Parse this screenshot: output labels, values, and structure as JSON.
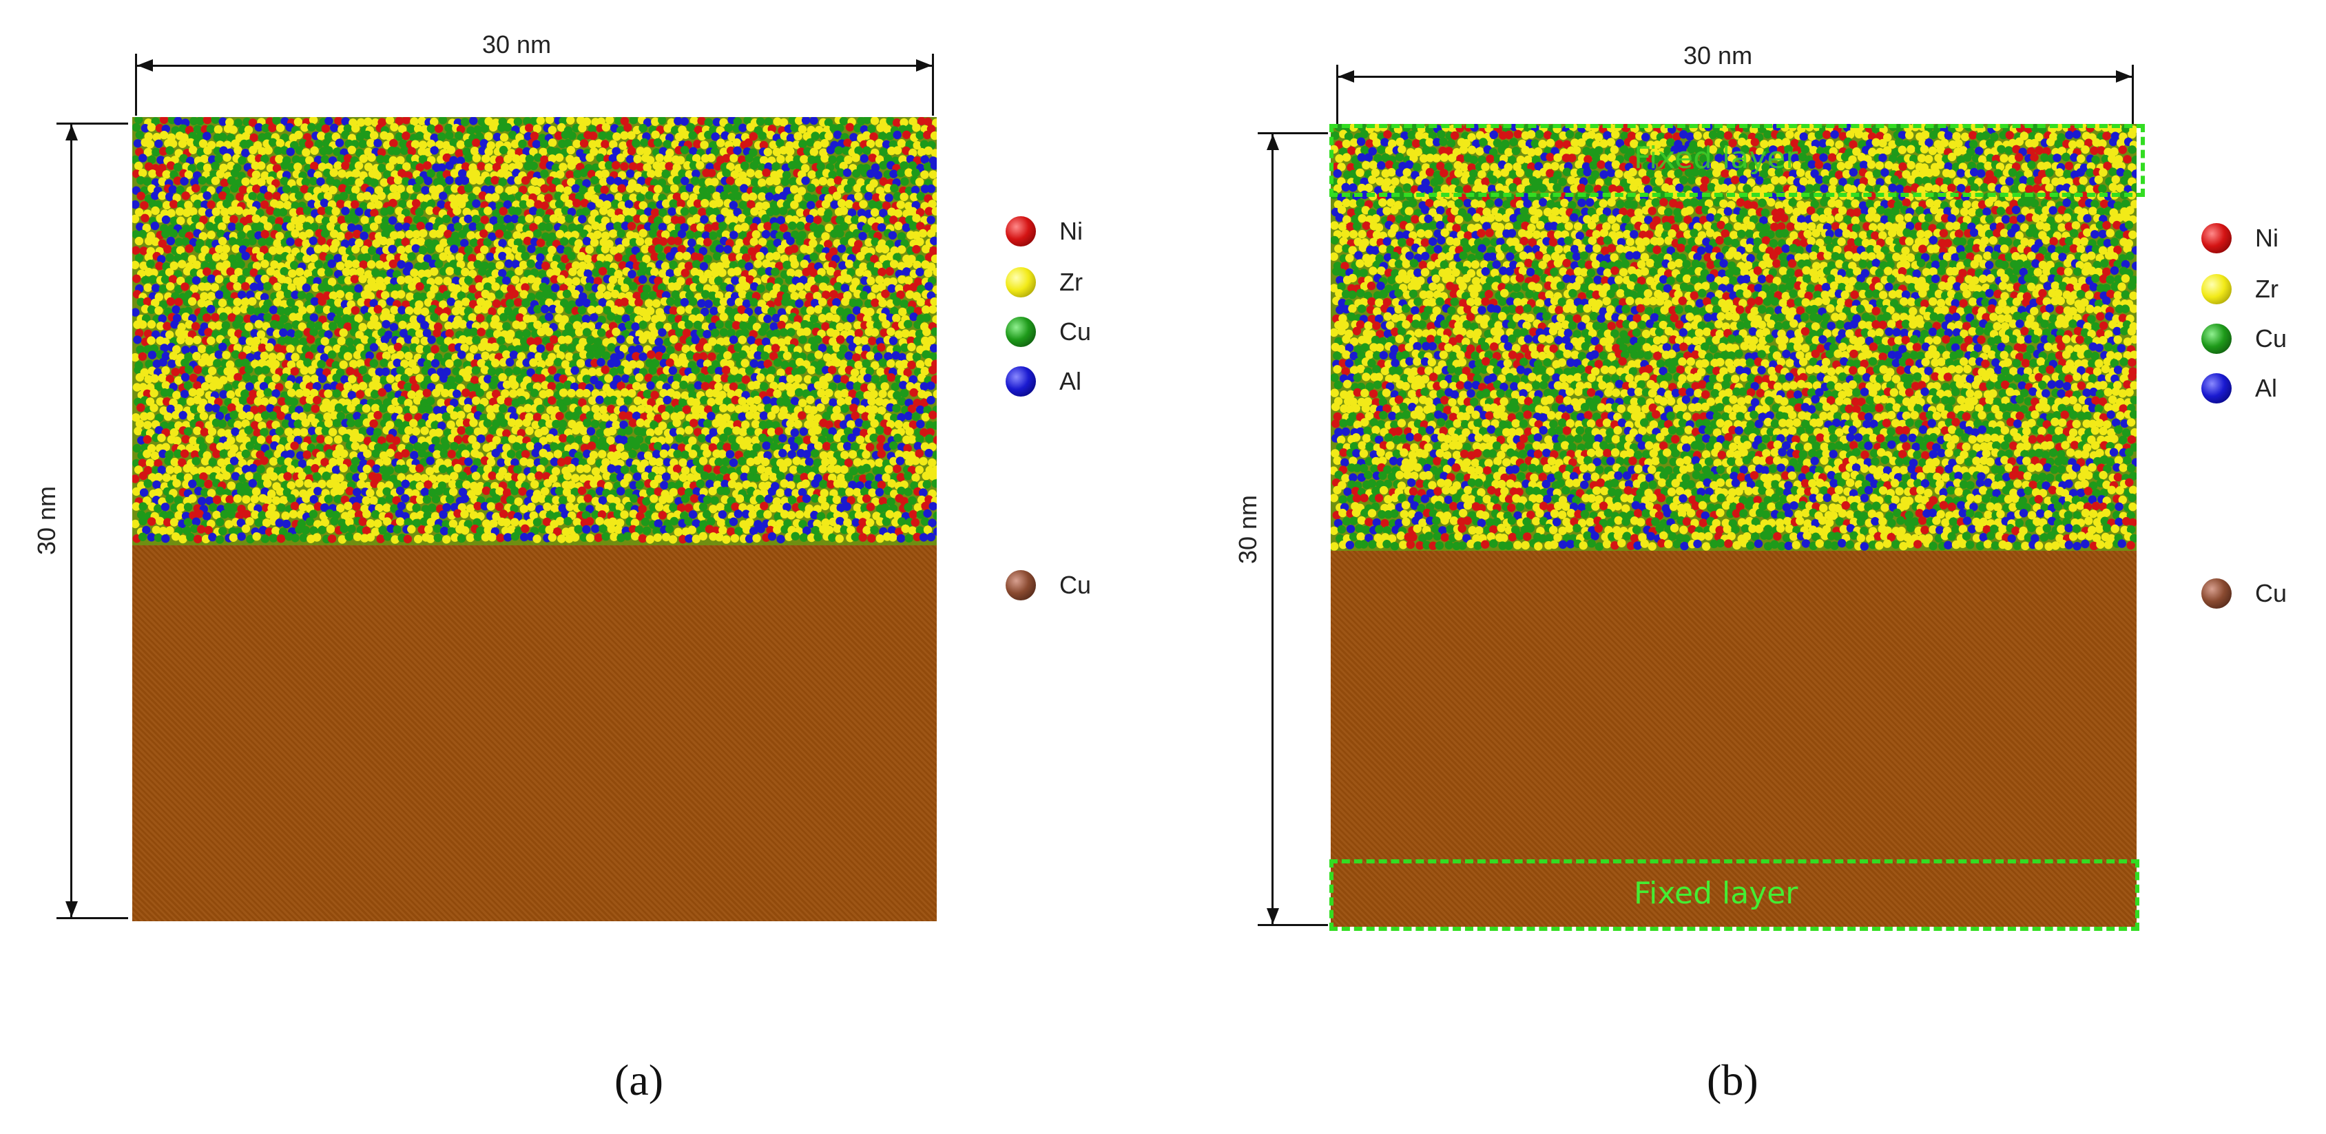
{
  "panels": [
    {
      "id": "a",
      "caption": "(a)",
      "width_label": "30 nm",
      "height_label": "30 nm",
      "legend": [
        {
          "label": "Ni",
          "color": "#d41414"
        },
        {
          "label": "Zr",
          "color": "#f2ea18"
        },
        {
          "label": "Cu",
          "color": "#1e9a1a"
        },
        {
          "label": "Al",
          "color": "#1a1ad0"
        },
        {
          "label": "Cu",
          "color": "#8a4a30"
        }
      ],
      "fixed_layers": []
    },
    {
      "id": "b",
      "caption": "(b)",
      "width_label": "30 nm",
      "height_label": "30 nm",
      "legend": [
        {
          "label": "Ni",
          "color": "#d41414"
        },
        {
          "label": "Zr",
          "color": "#f2ea18"
        },
        {
          "label": "Cu",
          "color": "#1e9a1a"
        },
        {
          "label": "Al",
          "color": "#1a1ad0"
        },
        {
          "label": "Cu",
          "color": "#8a4a30"
        }
      ],
      "fixed_layers": [
        {
          "label": "Fixed layer",
          "position": "top"
        },
        {
          "label": "Fixed layer",
          "position": "bottom"
        }
      ]
    }
  ],
  "colors": {
    "substrate": "#9a4f0c",
    "fixed_outline": "#33dd22",
    "atoms": [
      "#f2ea18",
      "#f2ea18",
      "#f2ea18",
      "#1e9a1a",
      "#1e9a1a",
      "#d41414",
      "#1a1ad0"
    ]
  }
}
